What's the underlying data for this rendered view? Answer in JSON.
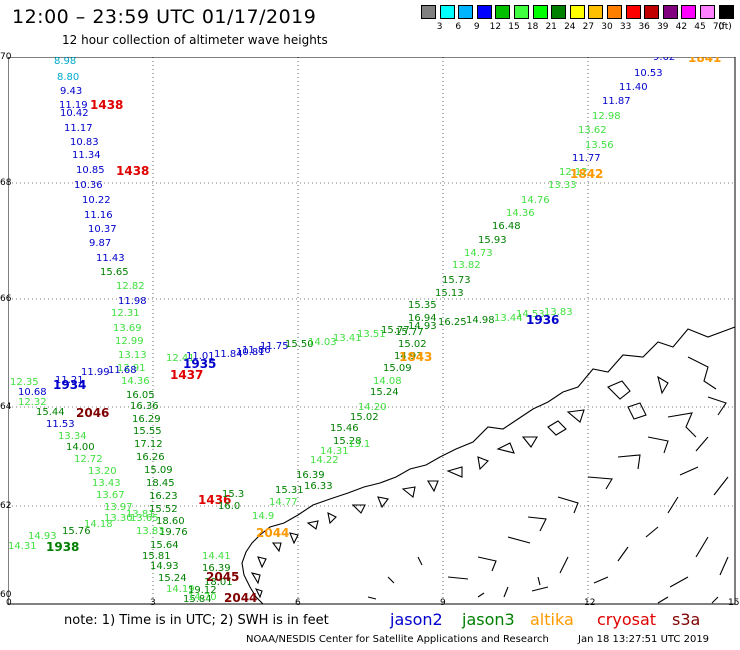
{
  "title": "12:00 – 23:59 UTC 01/17/2019",
  "subtitle": "12 hour collection of altimeter wave heights",
  "colorbar": {
    "labels": [
      "3",
      "6",
      "9",
      "12",
      "15",
      "18",
      "21",
      "24",
      "27",
      "30",
      "33",
      "36",
      "39",
      "42",
      "45",
      "70"
    ],
    "unit": "(ft)",
    "colors": [
      "#808080",
      "#00ffff",
      "#00b4ff",
      "#0000ff",
      "#00c000",
      "#40ff40",
      "#00ff00",
      "#008000",
      "#ffff00",
      "#ffc000",
      "#ff8000",
      "#ff0000",
      "#c00000",
      "#800080",
      "#ff00ff",
      "#ff80ff",
      "#000000"
    ]
  },
  "axes": {
    "lat_labels": [
      "70",
      "68",
      "66",
      "64",
      "62",
      "60"
    ],
    "lon_labels": [
      "0",
      "3",
      "6",
      "9",
      "12",
      "15"
    ]
  },
  "colors": {
    "jason2": "#0000cc",
    "jason3": "#008000",
    "jason3_light": "#40e040",
    "altika": "#ff9900",
    "cryosat": "#e00000",
    "s3a": "#800000",
    "cyan": "#00aacc"
  },
  "tracks": {
    "t1438": {
      "values": [
        {
          "t": "8.98",
          "c": "cyan"
        },
        {
          "t": "8.80",
          "c": "cyan"
        },
        {
          "t": "9.43",
          "c": "jason2"
        },
        {
          "t": "11.19",
          "c": "jason2"
        },
        {
          "t": "10.42",
          "c": "jason2"
        },
        {
          "t": "11.17",
          "c": "jason2"
        },
        {
          "t": "10.83",
          "c": "jason2"
        },
        {
          "t": "11.34",
          "c": "jason2"
        },
        {
          "t": "10.85",
          "c": "jason2"
        },
        {
          "t": "10.36",
          "c": "jason2"
        },
        {
          "t": "10.22",
          "c": "jason2"
        },
        {
          "t": "11.16",
          "c": "jason2"
        },
        {
          "t": "10.37",
          "c": "jason2"
        },
        {
          "t": "9.87",
          "c": "jason2"
        },
        {
          "t": "11.43",
          "c": "jason2"
        },
        {
          "t": "15.65",
          "c": "jason3"
        },
        {
          "t": "12.82",
          "c": "jason3_light"
        },
        {
          "t": "11.98",
          "c": "jason2"
        },
        {
          "t": "12.31",
          "c": "jason3_light"
        },
        {
          "t": "13.69",
          "c": "jason3_light"
        },
        {
          "t": "12.99",
          "c": "jason3_light"
        },
        {
          "t": "13.13",
          "c": "jason3_light"
        },
        {
          "t": "12.91",
          "c": "jason3_light"
        },
        {
          "t": "14.36",
          "c": "jason3_light"
        },
        {
          "t": "16.05",
          "c": "jason3"
        },
        {
          "t": "16.36",
          "c": "jason3"
        },
        {
          "t": "16.29",
          "c": "jason3"
        },
        {
          "t": "15.55",
          "c": "jason3"
        },
        {
          "t": "17.12",
          "c": "jason3"
        },
        {
          "t": "16.26",
          "c": "jason3"
        },
        {
          "t": "15.09",
          "c": "jason3"
        },
        {
          "t": "18.45",
          "c": "jason3"
        },
        {
          "t": "16.23",
          "c": "jason3"
        },
        {
          "t": "15.52",
          "c": "jason3"
        },
        {
          "t": "18.60",
          "c": "jason3"
        },
        {
          "t": "19.76",
          "c": "jason3"
        }
      ],
      "ids": [
        {
          "t": "1438",
          "c": "cryosat"
        },
        {
          "t": "1438",
          "c": "cryosat"
        },
        {
          "t": "1437",
          "c": "cryosat"
        },
        {
          "t": "1436",
          "c": "cryosat"
        }
      ]
    },
    "t1934": {
      "values": [
        {
          "t": "12.35",
          "c": "jason3_light"
        },
        {
          "t": "10.68",
          "c": "jason2"
        },
        {
          "t": "11.21",
          "c": "jason2"
        },
        {
          "t": "11.99",
          "c": "jason2"
        },
        {
          "t": "11.68",
          "c": "jason2"
        },
        {
          "t": "12.41",
          "c": "jason3_light"
        },
        {
          "t": "11.01",
          "c": "jason2"
        },
        {
          "t": "11.84",
          "c": "jason2"
        },
        {
          "t": "10.81",
          "c": "jason2"
        },
        {
          "t": "11.86",
          "c": "jason2"
        },
        {
          "t": "11.75",
          "c": "jason2"
        },
        {
          "t": "15.50",
          "c": "jason3"
        },
        {
          "t": "14.03",
          "c": "jason3_light"
        },
        {
          "t": "13.41",
          "c": "jason3_light"
        },
        {
          "t": "13.51",
          "c": "jason3_light"
        },
        {
          "t": "15.77",
          "c": "jason3"
        },
        {
          "t": "14.93",
          "c": "jason3"
        },
        {
          "t": "16.25",
          "c": "jason3"
        },
        {
          "t": "14.98",
          "c": "jason3"
        },
        {
          "t": "13.44",
          "c": "jason3_light"
        },
        {
          "t": "14.53",
          "c": "jason3_light"
        },
        {
          "t": "13.83",
          "c": "jason3_light"
        }
      ],
      "ids": [
        {
          "t": "1934",
          "c": "jason2"
        },
        {
          "t": "1935",
          "c": "jason2"
        },
        {
          "t": "1936",
          "c": "jason2"
        }
      ]
    },
    "t1841": {
      "values": [
        {
          "t": "9.62",
          "c": "jason2"
        },
        {
          "t": "10.53",
          "c": "jason2"
        },
        {
          "t": "11.40",
          "c": "jason2"
        },
        {
          "t": "11.87",
          "c": "jason2"
        },
        {
          "t": "12.98",
          "c": "jason3_light"
        },
        {
          "t": "13.62",
          "c": "jason3_light"
        },
        {
          "t": "13.56",
          "c": "jason3_light"
        },
        {
          "t": "11.77",
          "c": "jason2"
        },
        {
          "t": "12.12",
          "c": "jason3_light"
        },
        {
          "t": "13.33",
          "c": "jason3_light"
        },
        {
          "t": "14.76",
          "c": "jason3_light"
        },
        {
          "t": "14.36",
          "c": "jason3_light"
        },
        {
          "t": "16.48",
          "c": "jason3"
        },
        {
          "t": "15.93",
          "c": "jason3"
        },
        {
          "t": "14.73",
          "c": "jason3_light"
        },
        {
          "t": "13.82",
          "c": "jason3_light"
        },
        {
          "t": "15.73",
          "c": "jason3"
        },
        {
          "t": "15.13",
          "c": "jason3"
        },
        {
          "t": "15.35",
          "c": "jason3"
        },
        {
          "t": "16.94",
          "c": "jason3"
        },
        {
          "t": "15.77",
          "c": "jason3"
        },
        {
          "t": "15.02",
          "c": "jason3"
        },
        {
          "t": "14.93",
          "c": "jason3"
        },
        {
          "t": "15.09",
          "c": "jason3"
        },
        {
          "t": "14.08",
          "c": "jason3_light"
        },
        {
          "t": "15.24",
          "c": "jason3"
        },
        {
          "t": "14.20",
          "c": "jason3_light"
        },
        {
          "t": "15.02",
          "c": "jason3"
        },
        {
          "t": "15.46",
          "c": "jason3"
        },
        {
          "t": "15.28",
          "c": "jason3"
        },
        {
          "t": "14.31",
          "c": "jason3_light"
        },
        {
          "t": "14.22",
          "c": "jason3_light"
        },
        {
          "t": "16.39",
          "c": "jason3"
        },
        {
          "t": "16.33",
          "c": "jason3"
        },
        {
          "t": "15.31",
          "c": "jason3"
        },
        {
          "t": "14.77",
          "c": "jason3_light"
        }
      ],
      "ids": [
        {
          "t": "1841",
          "c": "altika"
        },
        {
          "t": "1842",
          "c": "altika"
        },
        {
          "t": "1843",
          "c": "altika"
        }
      ]
    },
    "t2046": {
      "values": [
        {
          "t": "12.32",
          "c": "jason3_light"
        },
        {
          "t": "15.44",
          "c": "jason3"
        },
        {
          "t": "11.53",
          "c": "jason2"
        },
        {
          "t": "13.34",
          "c": "jason3_light"
        },
        {
          "t": "14.00",
          "c": "jason3"
        },
        {
          "t": "12.72",
          "c": "jason3_light"
        },
        {
          "t": "13.20",
          "c": "jason3_light"
        },
        {
          "t": "13.43",
          "c": "jason3_light"
        },
        {
          "t": "13.67",
          "c": "jason3_light"
        },
        {
          "t": "13.97",
          "c": "jason3_light"
        },
        {
          "t": "13.65",
          "c": "jason3_light"
        },
        {
          "t": "13.83",
          "c": "jason3_light"
        },
        {
          "t": "15.64",
          "c": "jason3"
        },
        {
          "t": "15.81",
          "c": "jason3"
        },
        {
          "t": "14.93",
          "c": "jason3"
        },
        {
          "t": "15.24",
          "c": "jason3"
        },
        {
          "t": "14.19",
          "c": "jason3_light"
        },
        {
          "t": "15.84",
          "c": "jason3"
        },
        {
          "t": "14.70",
          "c": "jason3_light"
        },
        {
          "t": "18.01",
          "c": "jason3"
        },
        {
          "t": "19.12",
          "c": "jason3"
        },
        {
          "t": "16.39",
          "c": "jason3"
        },
        {
          "t": "14.41",
          "c": "jason3_light"
        }
      ],
      "ids": [
        {
          "t": "2046",
          "c": "s3a"
        },
        {
          "t": "2045",
          "c": "s3a"
        },
        {
          "t": "2044",
          "c": "s3a"
        }
      ]
    },
    "t1938": {
      "values": [
        {
          "t": "14.31",
          "c": "jason3_light"
        },
        {
          "t": "14.93",
          "c": "jason3_light"
        },
        {
          "t": "15.76",
          "c": "jason3"
        },
        {
          "t": "14.18",
          "c": "jason3_light"
        },
        {
          "t": "13.30",
          "c": "jason3_light"
        },
        {
          "t": "13.81",
          "c": "jason3_light"
        }
      ],
      "ids": [
        {
          "t": "1938",
          "c": "jason3"
        }
      ]
    },
    "misc": {
      "values": [
        {
          "t": "13.1",
          "c": "jason3_light"
        },
        {
          "t": "14.9",
          "c": "jason3_light"
        },
        {
          "t": "15.3",
          "c": "jason3"
        },
        {
          "t": "16.0",
          "c": "jason3"
        }
      ],
      "ids": [
        {
          "t": "2044",
          "c": "altika"
        }
      ]
    }
  },
  "note": "note: 1) Time is in UTC; 2) SWH is in feet",
  "legend": [
    {
      "label": "jason2",
      "color": "#0000cc"
    },
    {
      "label": "jason3",
      "color": "#008000"
    },
    {
      "label": "altika",
      "color": "#ff9900"
    },
    {
      "label": "cryosat",
      "color": "#e00000"
    },
    {
      "label": "s3a",
      "color": "#800000"
    }
  ],
  "credit": "NOAA/NESDIS Center for Satellite Applications and Research",
  "stamp": "Jan 18 13:27:51 UTC 2019"
}
